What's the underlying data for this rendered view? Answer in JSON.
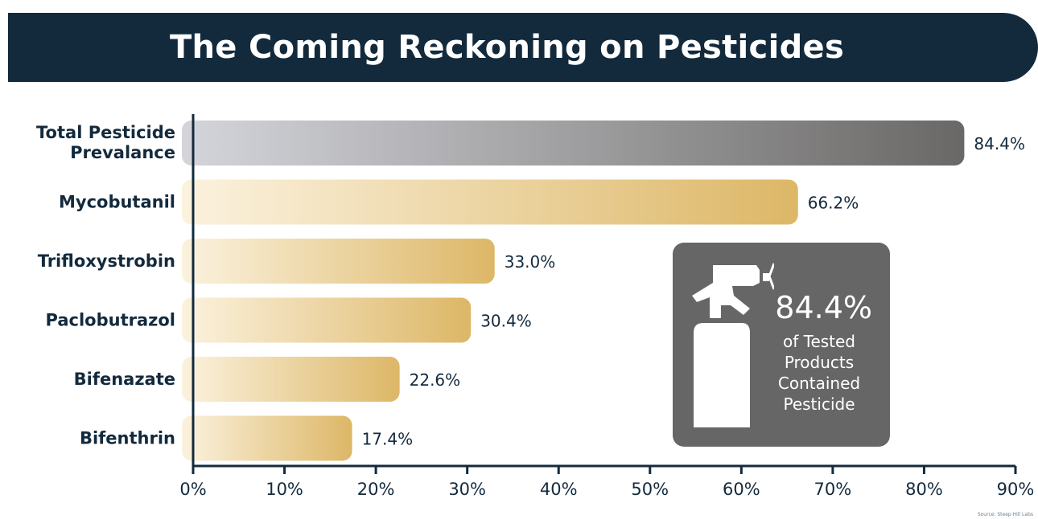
{
  "chart_data": {
    "type": "bar",
    "orientation": "horizontal",
    "title": "The Coming Reckoning on Pesticides",
    "categories": [
      "Total Pesticide Prevalance",
      "Mycobutanil",
      "Trifloxystrobin",
      "Paclobutrazol",
      "Bifenazate",
      "Bifenthrin"
    ],
    "values": [
      84.4,
      66.2,
      33.0,
      30.4,
      22.6,
      17.4
    ],
    "value_labels": [
      "84.4%",
      "66.2%",
      "33.0%",
      "30.4%",
      "22.6%",
      "17.4%"
    ],
    "xlim": [
      0,
      90
    ],
    "x_ticks": [
      "0%",
      "10%",
      "20%",
      "30%",
      "40%",
      "50%",
      "60%",
      "70%",
      "80%",
      "90%"
    ],
    "grid": false,
    "colors": {
      "total_bar_start": "#d4d5db",
      "total_bar_end": "#6a6866",
      "pesticide_bar_start": "#fbf2de",
      "pesticide_bar_end": "#ddb767",
      "axis": "#132a3d",
      "label_text": "#132a3d"
    }
  },
  "header": {
    "title": "The Coming Reckoning on Pesticides",
    "background": "#132a3d"
  },
  "callout": {
    "icon": "spray-bottle-icon",
    "value": "84.4%",
    "caption": "of Tested\nProducts\nContained\nPesticide",
    "background": "#666667"
  },
  "footer": {
    "source": "Source: Steep Hill Labs"
  }
}
